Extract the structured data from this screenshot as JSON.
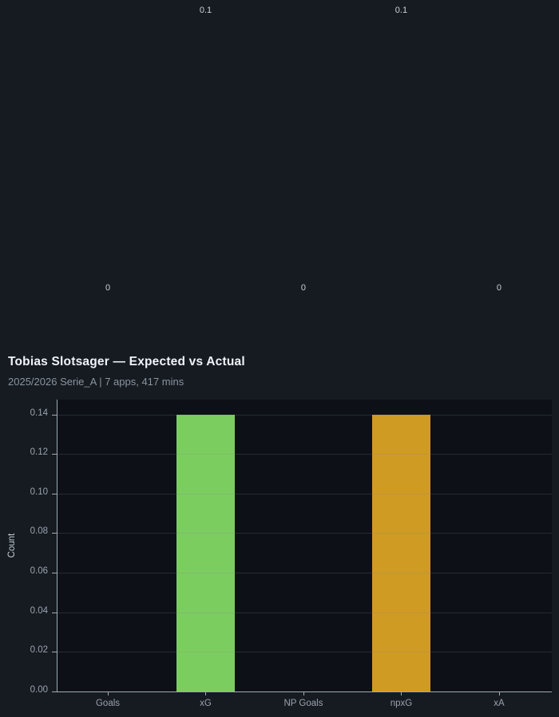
{
  "header": {
    "title": "Tobias Slotsager — Expected vs Actual",
    "subtitle": "2025/2026 Serie_A | 7 apps, 417 mins"
  },
  "upper_labels": {
    "description": "ghost value labels of an off-screen chart above, one per category",
    "values": [
      "0",
      "0.1",
      "0",
      "0.1",
      "0"
    ]
  },
  "chart_data": {
    "type": "bar",
    "title": "Tobias Slotsager — Expected vs Actual",
    "subtitle": "2025/2026 Serie_A | 7 apps, 417 mins",
    "categories": [
      "Goals",
      "xG",
      "NP Goals",
      "npxG",
      "xA"
    ],
    "values": [
      0,
      0.14,
      0,
      0.14,
      0
    ],
    "value_labels": [
      "0",
      "0.1",
      "0",
      "0.1",
      "0"
    ],
    "bar_colors": {
      "xG": "#7ccd5f",
      "npxG": "#d09b22"
    },
    "xlabel": "",
    "ylabel": "Count",
    "yticks": [
      "0.00",
      "0.02",
      "0.04",
      "0.06",
      "0.08",
      "0.10",
      "0.12",
      "0.14"
    ],
    "ytick_values": [
      0,
      0.02,
      0.04,
      0.06,
      0.08,
      0.1,
      0.12,
      0.14
    ],
    "ylim": [
      0,
      0.1475
    ],
    "grid": "horizontal",
    "legend": "none"
  },
  "colors": {
    "page_bg": "#161b22",
    "plot_bg": "#0d1117",
    "green_bar": "#7ccd5f",
    "orange_bar": "#d09b22",
    "axis_line": "#a2aab3",
    "tick_text": "#9aa2ac",
    "title_text": "#f0f4f8",
    "subtitle_text": "#8b949e"
  }
}
